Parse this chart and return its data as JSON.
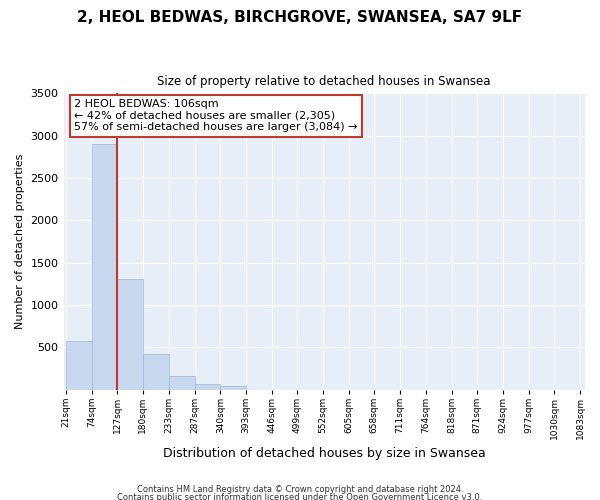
{
  "title": "2, HEOL BEDWAS, BIRCHGROVE, SWANSEA, SA7 9LF",
  "subtitle": "Size of property relative to detached houses in Swansea",
  "xlabel": "Distribution of detached houses by size in Swansea",
  "ylabel": "Number of detached properties",
  "bin_labels": [
    "21sqm",
    "74sqm",
    "127sqm",
    "180sqm",
    "233sqm",
    "287sqm",
    "340sqm",
    "393sqm",
    "446sqm",
    "499sqm",
    "552sqm",
    "605sqm",
    "658sqm",
    "711sqm",
    "764sqm",
    "818sqm",
    "871sqm",
    "924sqm",
    "977sqm",
    "1030sqm",
    "1083sqm"
  ],
  "bar_heights": [
    580,
    2900,
    1310,
    420,
    160,
    65,
    45,
    0,
    0,
    0,
    0,
    0,
    0,
    0,
    0,
    0,
    0,
    0,
    0,
    0
  ],
  "bar_color": "#c8d8ee",
  "vline_color": "#c0392b",
  "vline_x_bin_edge_index": 2,
  "annotation_line1": "2 HEOL BEDWAS: 106sqm",
  "annotation_line2": "← 42% of detached houses are smaller (2,305)",
  "annotation_line3": "57% of semi-detached houses are larger (3,084) →",
  "annotation_box_color": "white",
  "annotation_box_edge_color": "#c0392b",
  "ylim": [
    0,
    3500
  ],
  "yticks": [
    0,
    500,
    1000,
    1500,
    2000,
    2500,
    3000,
    3500
  ],
  "footer1": "Contains HM Land Registry data © Crown copyright and database right 2024.",
  "footer2": "Contains public sector information licensed under the Open Government Licence v3.0.",
  "background_color": "#ffffff",
  "plot_background_color": "#e8eef8",
  "grid_color": "#ffffff",
  "bin_edges": [
    21,
    74,
    127,
    180,
    233,
    287,
    340,
    393,
    446,
    499,
    552,
    605,
    658,
    711,
    764,
    818,
    871,
    924,
    977,
    1030,
    1083
  ]
}
